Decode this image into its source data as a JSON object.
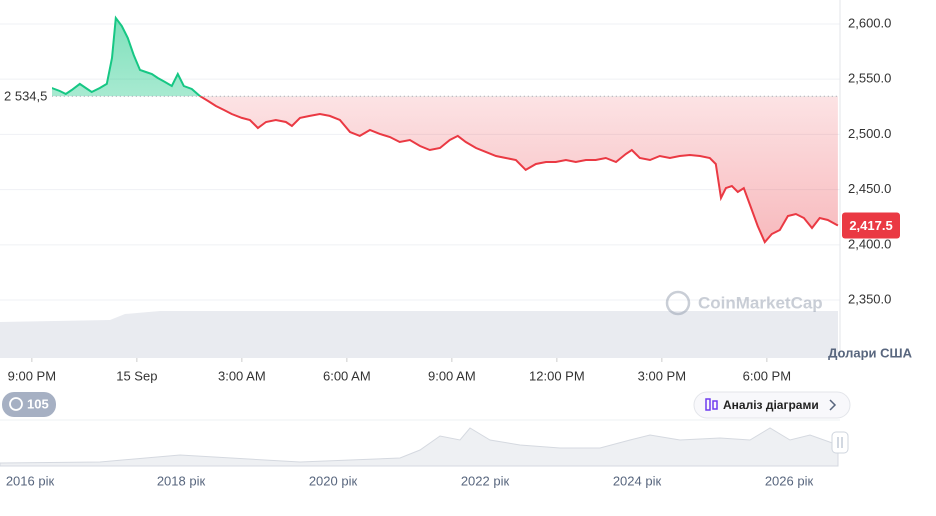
{
  "chart_data": {
    "type": "line",
    "x": [
      0.57,
      0.8,
      0.97,
      1.14,
      1.37,
      1.54,
      1.71,
      1.94,
      2.14,
      2.29,
      2.4,
      2.57,
      2.74,
      2.91,
      3.09,
      3.26,
      3.43,
      3.6,
      3.8,
      4.0,
      4.17,
      4.34,
      4.57,
      4.8,
      5.03,
      5.26,
      5.49,
      5.71,
      6.0,
      6.23,
      6.46,
      6.69,
      6.97,
      7.26,
      7.43,
      7.66,
      7.94,
      8.23,
      8.51,
      8.8,
      9.09,
      9.37,
      9.66,
      9.94,
      10.23,
      10.51,
      10.8,
      11.09,
      11.37,
      11.66,
      11.94,
      12.17,
      12.4,
      12.69,
      12.97,
      13.26,
      13.54,
      13.83,
      14.11,
      14.4,
      14.69,
      14.97,
      15.26,
      15.54,
      15.83,
      16.11,
      16.4,
      16.69,
      16.97,
      17.14,
      17.37,
      17.66,
      17.94,
      18.23,
      18.51,
      18.8,
      19.09,
      19.37,
      19.54,
      19.69,
      19.83,
      20.0,
      20.17,
      20.34,
      20.51,
      20.74,
      20.94,
      21.14,
      21.37,
      21.6,
      21.83,
      22.06,
      22.29,
      22.51,
      22.74,
      23.03
    ],
    "values": [
      2542.0,
      2539.3,
      2536.6,
      2540.2,
      2545.7,
      2542.0,
      2538.4,
      2542.0,
      2545.7,
      2569.2,
      2605.4,
      2598.2,
      2587.3,
      2571.9,
      2558.3,
      2556.5,
      2554.7,
      2551.1,
      2547.5,
      2543.8,
      2554.7,
      2543.8,
      2541.1,
      2534.8,
      2530.3,
      2525.7,
      2522.1,
      2518.5,
      2514.9,
      2513.0,
      2505.8,
      2511.2,
      2513.0,
      2511.2,
      2507.6,
      2514.9,
      2516.7,
      2518.5,
      2516.7,
      2513.0,
      2502.2,
      2498.6,
      2504.0,
      2500.4,
      2497.6,
      2493.1,
      2494.9,
      2489.5,
      2485.9,
      2487.7,
      2494.9,
      2498.6,
      2493.1,
      2487.7,
      2484.1,
      2480.4,
      2478.6,
      2476.8,
      2467.8,
      2473.2,
      2475.0,
      2475.0,
      2476.8,
      2475.0,
      2476.8,
      2476.8,
      2478.6,
      2475.0,
      2482.2,
      2485.9,
      2478.6,
      2476.8,
      2480.4,
      2478.6,
      2480.4,
      2481.3,
      2480.4,
      2478.6,
      2473.2,
      2442.4,
      2451.4,
      2453.3,
      2447.8,
      2451.4,
      2436.9,
      2417.0,
      2402.5,
      2409.8,
      2413.4,
      2426.1,
      2427.9,
      2424.3,
      2415.2,
      2424.3,
      2422.5,
      2417.5
    ],
    "up_color": "#16c784",
    "down_color": "#ea3943",
    "baseline": {
      "value": 2534.5,
      "label": "2 534,5"
    },
    "last_price": {
      "value": 2417.5,
      "label": "2,417.5"
    },
    "xlim": [
      -0.91,
      23.09
    ],
    "xticks": [
      {
        "value": 0,
        "label": "9:00 PM"
      },
      {
        "value": 3,
        "label": "15 Sep"
      },
      {
        "value": 6,
        "label": "3:00 AM"
      },
      {
        "value": 9,
        "label": "6:00 AM"
      },
      {
        "value": 12,
        "label": "9:00 AM"
      },
      {
        "value": 15,
        "label": "12:00 PM"
      },
      {
        "value": 18,
        "label": "3:00 PM"
      },
      {
        "value": 21,
        "label": "6:00 PM"
      }
    ],
    "ylim": [
      2297.5,
      2621.7
    ],
    "yticks": [
      {
        "value": 2350,
        "label": "2,350.0"
      },
      {
        "value": 2400,
        "label": "2,400.0"
      },
      {
        "value": 2450,
        "label": "2,450.0"
      },
      {
        "value": 2500,
        "label": "2,500.0"
      },
      {
        "value": 2550,
        "label": "2,550.0"
      },
      {
        "value": 2600,
        "label": "2,600.0"
      }
    ],
    "grid": true,
    "y_axis_label": "Долари США"
  },
  "ui": {
    "watermark": "CoinMarketCap",
    "history_badge": "105",
    "analysis_button": "Аналіз діаграми",
    "navigator_labels": [
      "2016 рік",
      "2018 рік",
      "2020 рік",
      "2022 рік",
      "2024 рік",
      "2026 рік"
    ]
  }
}
